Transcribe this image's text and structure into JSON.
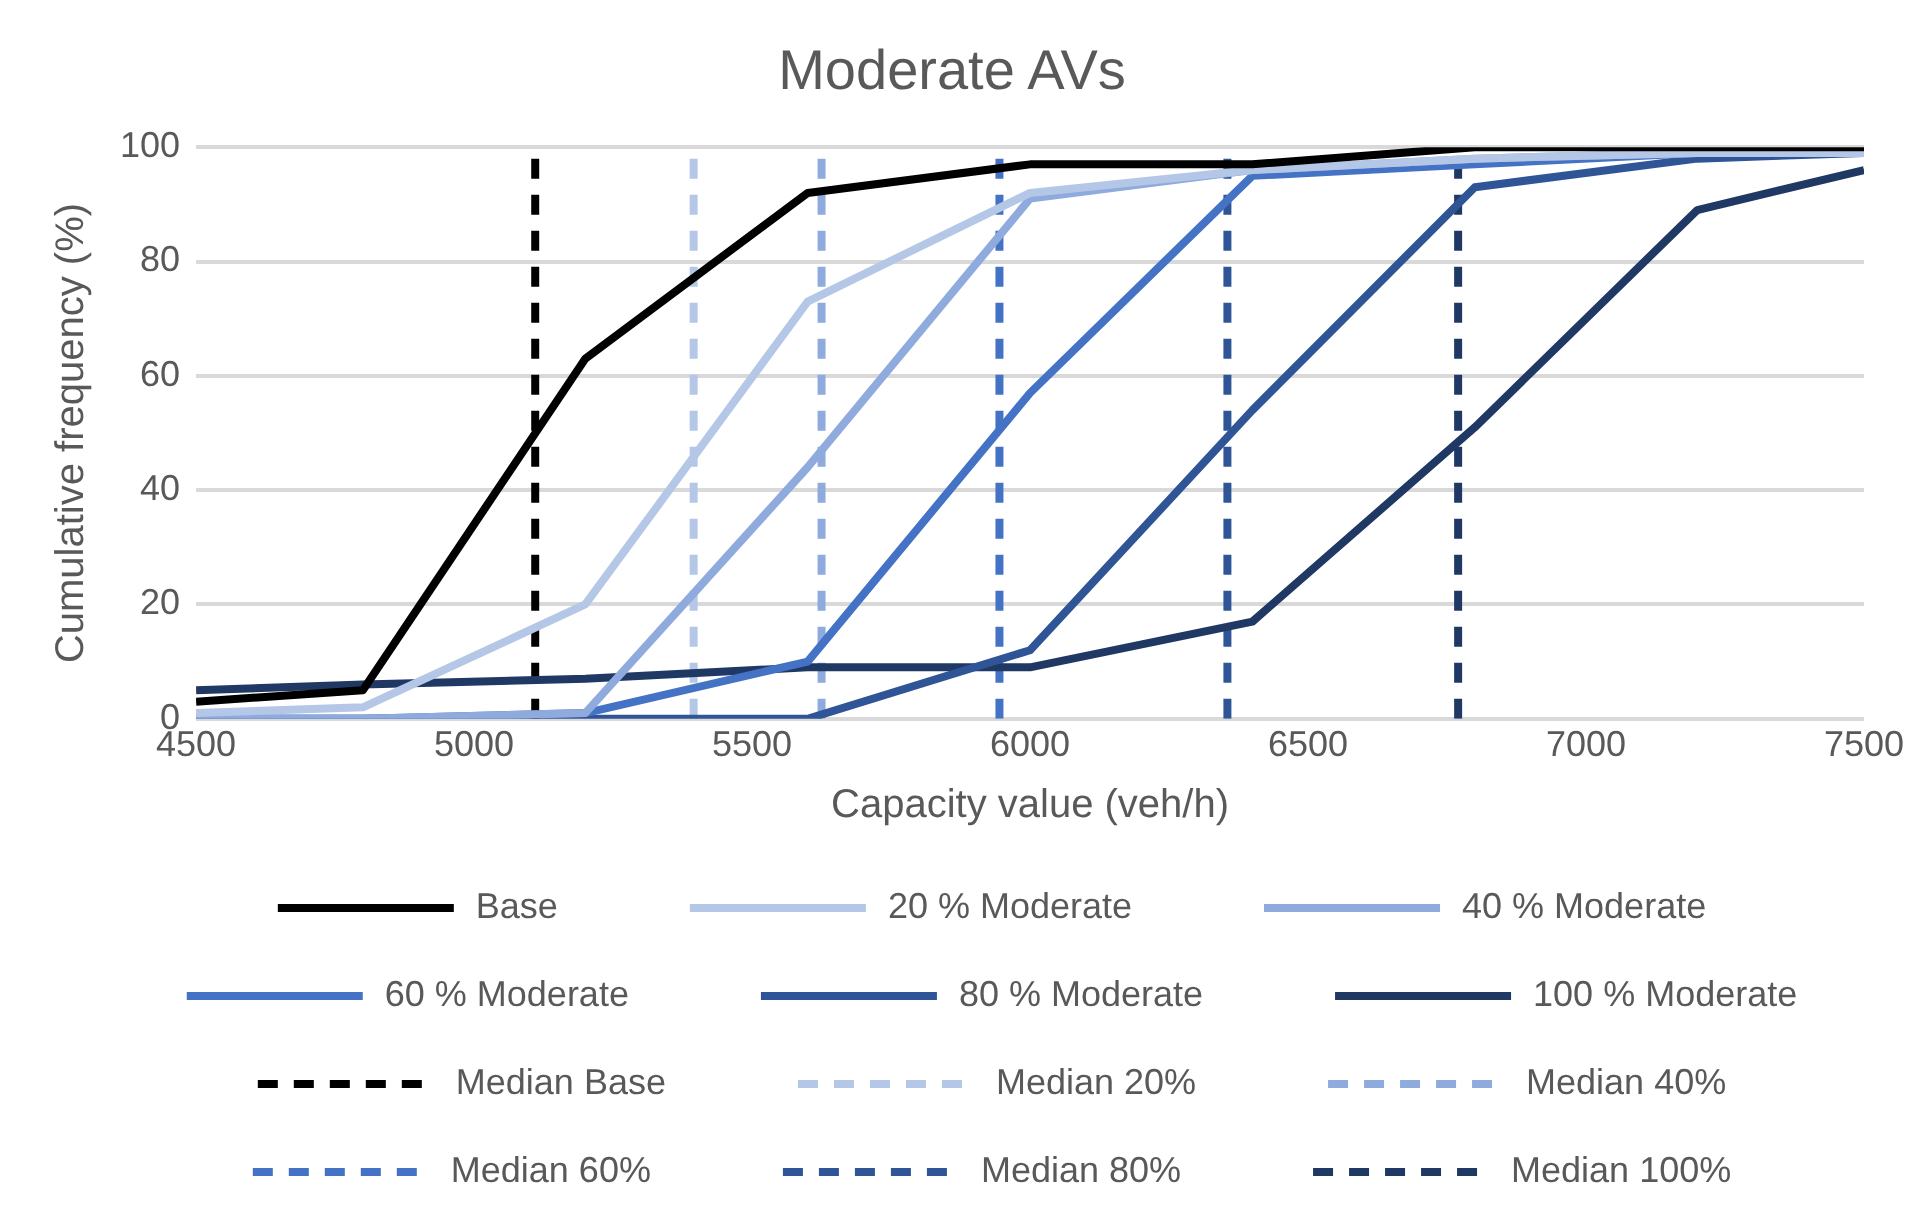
{
  "chart_data": {
    "type": "line",
    "title": "Moderate AVs",
    "xlabel": "Capacity value (veh/h)",
    "ylabel": "Cumulative frequency (%)",
    "x": [
      4500,
      4800,
      5200,
      5600,
      6000,
      6400,
      6800,
      7200,
      7500
    ],
    "xlim": [
      4500,
      7500
    ],
    "xticks": [
      4500,
      5000,
      5500,
      6000,
      6500,
      7000,
      7500
    ],
    "ylim": [
      0,
      100
    ],
    "yticks": [
      0,
      20,
      40,
      60,
      80,
      100
    ],
    "grid": "y",
    "legend": "bottom",
    "marker": "none",
    "series": [
      {
        "name": "Base",
        "color": "#000000",
        "values": [
          3,
          5,
          63,
          92,
          97,
          97,
          100,
          100,
          100
        ]
      },
      {
        "name": "20 % Moderate",
        "color": "#b4c7e7",
        "values": [
          1,
          2,
          20,
          73,
          92,
          96,
          98,
          99,
          99
        ]
      },
      {
        "name": "40 % Moderate",
        "color": "#8faadc",
        "values": [
          0,
          0,
          1,
          44,
          91,
          96,
          98,
          99,
          99
        ]
      },
      {
        "name": "60 % Moderate",
        "color": "#4472c4",
        "values": [
          0,
          0,
          1,
          10,
          57,
          95,
          97,
          99,
          99
        ]
      },
      {
        "name": "80 % Moderate",
        "color": "#2f5597",
        "values": [
          0,
          0,
          0,
          0,
          12,
          54,
          93,
          98,
          99
        ]
      },
      {
        "name": "100 % Moderate",
        "color": "#203864",
        "values": [
          5,
          6,
          7,
          9,
          9,
          17,
          51,
          89,
          96
        ]
      },
      {
        "name": "Median Base",
        "color": "#000000",
        "line_style": "dashed",
        "x": [
          5110,
          5110
        ],
        "values": [
          0,
          100
        ]
      },
      {
        "name": "Median 20%",
        "color": "#b4c7e7",
        "line_style": "dashed",
        "x": [
          5395,
          5395
        ],
        "values": [
          0,
          100
        ]
      },
      {
        "name": "Median 40%",
        "color": "#8faadc",
        "line_style": "dashed",
        "x": [
          5625,
          5625
        ],
        "values": [
          0,
          100
        ]
      },
      {
        "name": "Median 60%",
        "color": "#4472c4",
        "line_style": "dashed",
        "x": [
          5945,
          5945
        ],
        "values": [
          0,
          100
        ]
      },
      {
        "name": "Median 80%",
        "color": "#2f5597",
        "line_style": "dashed",
        "x": [
          6355,
          6355
        ],
        "values": [
          0,
          100
        ]
      },
      {
        "name": "Median 100%",
        "color": "#203864",
        "line_style": "dashed",
        "x": [
          6770,
          6770
        ],
        "values": [
          0,
          100
        ]
      }
    ]
  }
}
